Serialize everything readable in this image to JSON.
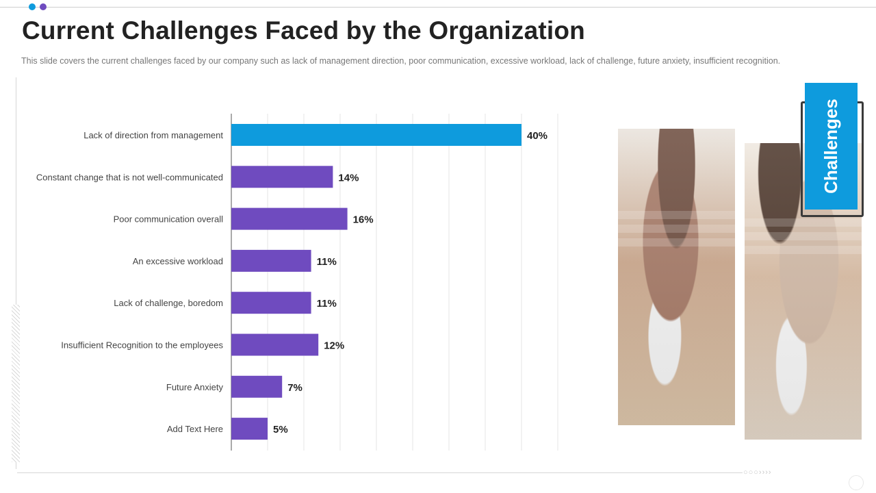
{
  "header": {
    "title": "Current Challenges Faced by the Organization",
    "subtitle": "This slide covers the current challenges faced by our company such as lack of management direction, poor communication, excessive workload, lack of challenge, future anxiety, insufficient recognition."
  },
  "badge": {
    "label": "Challenges"
  },
  "decor": {
    "chevrons": "○○○››››"
  },
  "colors": {
    "highlight": "#0e9bdd",
    "bar": "#6f4bbf",
    "grid": "#e6e6e6",
    "axis": "#555555"
  },
  "chart_data": {
    "type": "bar",
    "orientation": "horizontal",
    "categories": [
      "Lack of direction from management",
      "Constant change that is not well-communicated",
      "Poor communication overall",
      "An excessive workload",
      "Lack of challenge, boredom",
      "Insufficient Recognition to the employees",
      "Future Anxiety",
      "Add Text Here"
    ],
    "values": [
      40,
      14,
      16,
      11,
      11,
      12,
      7,
      5
    ],
    "value_labels": [
      "40%",
      "14%",
      "16%",
      "11%",
      "11%",
      "12%",
      "7%",
      "5%"
    ],
    "xlim": [
      0,
      45
    ],
    "grid": true,
    "highlight_index": 0
  }
}
